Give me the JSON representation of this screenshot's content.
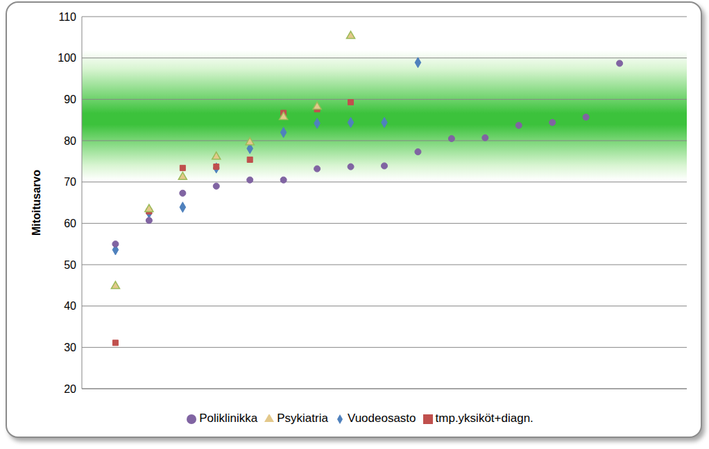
{
  "chart_data": {
    "type": "scatter",
    "y_label": "Mitoitusarvo",
    "x": [
      1,
      2,
      3,
      4,
      5,
      6,
      7,
      8,
      9,
      10,
      11,
      12,
      13,
      14,
      15,
      16
    ],
    "xlim": [
      0,
      18
    ],
    "ylim": [
      20,
      110
    ],
    "yticks": [
      20,
      30,
      40,
      50,
      60,
      70,
      80,
      90,
      100,
      110
    ],
    "grid": true,
    "legend": "bottom",
    "tick_labels": "y",
    "series": [
      {
        "name": "Vuodeosasto",
        "color": "#4f81bd",
        "marker": "diamond",
        "values": [
          53.6,
          62.5,
          63.9,
          73.4,
          78.1,
          82.0,
          84.2,
          84.4,
          84.4,
          98.9,
          null,
          null,
          null,
          null,
          null,
          null
        ]
      },
      {
        "name": "tmp.yksiköt+diagn.",
        "color": "#c0504d",
        "marker": "square",
        "values": [
          31.1,
          62.9,
          73.4,
          73.7,
          75.4,
          86.7,
          87.6,
          89.3,
          null,
          null,
          null,
          null,
          null,
          null,
          null,
          null
        ]
      },
      {
        "name": "Poliklinikka",
        "color": "#8064a2",
        "marker": "circle",
        "values": [
          55.0,
          60.7,
          67.3,
          69.0,
          70.5,
          70.5,
          73.2,
          73.7,
          73.9,
          77.3,
          80.5,
          80.7,
          83.7,
          84.4,
          85.7,
          98.7
        ]
      },
      {
        "name": "Psykiatria",
        "color": "#e3c88a",
        "marker": "triangle",
        "values": [
          44.8,
          63.4,
          71.2,
          76.1,
          79.6,
          85.7,
          88.2,
          105.3,
          null,
          null,
          null,
          null,
          null,
          null,
          null,
          null
        ]
      }
    ]
  }
}
